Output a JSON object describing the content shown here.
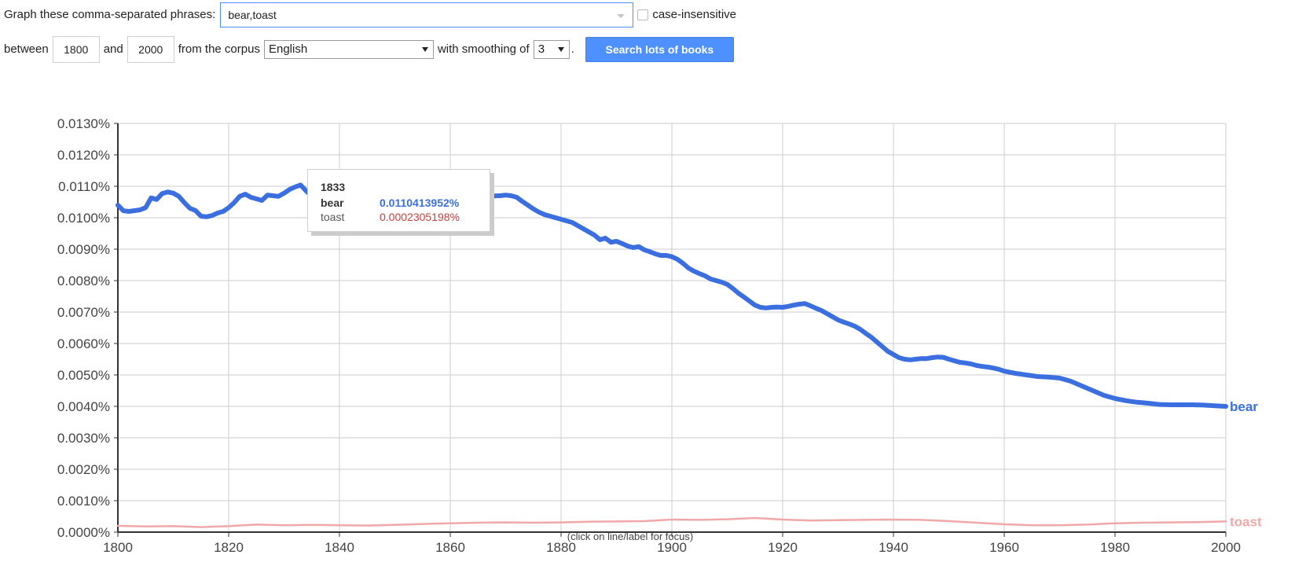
{
  "form": {
    "phrases_label": "Graph these comma-separated phrases:",
    "phrases_value": "bear,toast",
    "case_label": "case-insensitive",
    "between_label": "between",
    "start_year": "1800",
    "and_label": "and",
    "end_year": "2000",
    "corpus_label": "from the corpus",
    "corpus_value": "English",
    "smoothing_label": "with smoothing of",
    "smoothing_value": "3",
    "period": ".",
    "search_button": "Search lots of books"
  },
  "tooltip": {
    "year": "1833",
    "rows": [
      {
        "name": "bear",
        "value": "0.0110413952%"
      },
      {
        "name": "toast",
        "value": "0.0002305198%"
      }
    ]
  },
  "note": "(click on line/label for focus)",
  "chart_data": {
    "type": "line",
    "xlim": [
      1800,
      2000
    ],
    "ylim": [
      0,
      0.013
    ],
    "x_ticks": [
      1800,
      1820,
      1840,
      1860,
      1880,
      1900,
      1920,
      1940,
      1960,
      1980,
      2000
    ],
    "y_ticks": [
      0,
      0.001,
      0.002,
      0.003,
      0.004,
      0.005,
      0.006,
      0.007,
      0.008,
      0.009,
      0.01,
      0.011,
      0.012,
      0.013
    ],
    "y_tick_labels": [
      "0.0000%",
      "0.0010%",
      "0.0020%",
      "0.0030%",
      "0.0040%",
      "0.0050%",
      "0.0060%",
      "0.0070%",
      "0.0080%",
      "0.0090%",
      "0.0100%",
      "0.0110%",
      "0.0120%",
      "0.0130%"
    ],
    "grid": true,
    "legend": "end-of-line labels",
    "series": [
      {
        "name": "bear",
        "color": "#3b6fe0",
        "x": [
          1800,
          1801,
          1802,
          1804,
          1805,
          1806,
          1807,
          1808,
          1809,
          1810,
          1811,
          1812,
          1813,
          1814,
          1815,
          1816,
          1817,
          1818,
          1819,
          1820,
          1821,
          1822,
          1823,
          1824,
          1825,
          1826,
          1827,
          1828,
          1829,
          1830,
          1831,
          1832,
          1833,
          1834,
          1835,
          1836,
          1837,
          1838,
          1869,
          1870,
          1871,
          1872,
          1873,
          1874,
          1875,
          1876,
          1877,
          1878,
          1879,
          1880,
          1881,
          1882,
          1883,
          1884,
          1885,
          1886,
          1887,
          1888,
          1889,
          1890,
          1891,
          1892,
          1893,
          1894,
          1895,
          1896,
          1897,
          1898,
          1899,
          1900,
          1901,
          1902,
          1903,
          1904,
          1905,
          1906,
          1907,
          1908,
          1909,
          1910,
          1911,
          1912,
          1913,
          1914,
          1915,
          1916,
          1917,
          1918,
          1919,
          1920,
          1921,
          1922,
          1923,
          1924,
          1925,
          1926,
          1927,
          1928,
          1929,
          1930,
          1931,
          1932,
          1933,
          1934,
          1935,
          1936,
          1937,
          1938,
          1939,
          1940,
          1941,
          1942,
          1943,
          1944,
          1945,
          1946,
          1947,
          1948,
          1949,
          1950,
          1951,
          1952,
          1953,
          1954,
          1955,
          1956,
          1957,
          1958,
          1959,
          1960,
          1962,
          1964,
          1966,
          1968,
          1970,
          1972,
          1974,
          1976,
          1978,
          1980,
          1982,
          1984,
          1986,
          1988,
          1990,
          1992,
          1994,
          1996,
          1998,
          2000
        ],
        "y": [
          0.0104,
          0.01022,
          0.0102,
          0.01025,
          0.01032,
          0.01063,
          0.01058,
          0.01077,
          0.01082,
          0.01078,
          0.01068,
          0.01048,
          0.0103,
          0.01023,
          0.01005,
          0.01003,
          0.01007,
          0.01015,
          0.0102,
          0.01032,
          0.01048,
          0.01068,
          0.01075,
          0.01065,
          0.0106,
          0.01055,
          0.01072,
          0.0107,
          0.01068,
          0.01078,
          0.0109,
          0.01098,
          0.01104,
          0.01085,
          0.01068,
          0.0106,
          0.01055,
          0.0105,
          0.0107,
          0.01072,
          0.0107,
          0.01065,
          0.01052,
          0.0104,
          0.01028,
          0.01018,
          0.0101,
          0.01005,
          0.01,
          0.00995,
          0.0099,
          0.00985,
          0.00975,
          0.00965,
          0.00955,
          0.00945,
          0.0093,
          0.00935,
          0.00922,
          0.00925,
          0.00918,
          0.0091,
          0.00905,
          0.00908,
          0.00898,
          0.00892,
          0.00885,
          0.0088,
          0.0088,
          0.00876,
          0.00868,
          0.00855,
          0.0084,
          0.0083,
          0.00822,
          0.00815,
          0.00805,
          0.008,
          0.00795,
          0.00788,
          0.00775,
          0.0076,
          0.00748,
          0.00735,
          0.00722,
          0.00715,
          0.00713,
          0.00715,
          0.00716,
          0.00715,
          0.00718,
          0.00722,
          0.00725,
          0.00727,
          0.0072,
          0.00712,
          0.00705,
          0.00695,
          0.00685,
          0.00675,
          0.00668,
          0.00662,
          0.00655,
          0.00645,
          0.00632,
          0.0062,
          0.00605,
          0.0059,
          0.00575,
          0.00565,
          0.00555,
          0.0055,
          0.00548,
          0.0055,
          0.00552,
          0.00552,
          0.00555,
          0.00557,
          0.00556,
          0.0055,
          0.00545,
          0.0054,
          0.00538,
          0.00535,
          0.0053,
          0.00527,
          0.00525,
          0.00522,
          0.00518,
          0.00512,
          0.00505,
          0.005,
          0.00495,
          0.00493,
          0.0049,
          0.0048,
          0.00465,
          0.0045,
          0.00435,
          0.00425,
          0.00418,
          0.00413,
          0.0041,
          0.00406,
          0.00405,
          0.00405,
          0.00405,
          0.00404,
          0.00402,
          0.004
        ]
      },
      {
        "name": "toast",
        "color": "#f0a8a8",
        "x": [
          1800,
          1805,
          1810,
          1815,
          1820,
          1825,
          1830,
          1835,
          1840,
          1845,
          1850,
          1855,
          1860,
          1865,
          1870,
          1875,
          1880,
          1885,
          1890,
          1895,
          1900,
          1905,
          1910,
          1915,
          1920,
          1925,
          1930,
          1935,
          1940,
          1945,
          1950,
          1955,
          1960,
          1965,
          1970,
          1975,
          1980,
          1985,
          1990,
          1995,
          2000
        ],
        "y": [
          0.0002,
          0.00018,
          0.00019,
          0.00016,
          0.00019,
          0.00024,
          0.00022,
          0.00023,
          0.00022,
          0.00021,
          0.00023,
          0.00026,
          0.00028,
          0.0003,
          0.00031,
          0.0003,
          0.00031,
          0.00033,
          0.00034,
          0.00035,
          0.0004,
          0.00039,
          0.00041,
          0.00045,
          0.0004,
          0.00037,
          0.00038,
          0.00039,
          0.0004,
          0.00039,
          0.00035,
          0.0003,
          0.00025,
          0.00022,
          0.00022,
          0.00024,
          0.00028,
          0.0003,
          0.00031,
          0.00032,
          0.00034
        ]
      }
    ]
  }
}
